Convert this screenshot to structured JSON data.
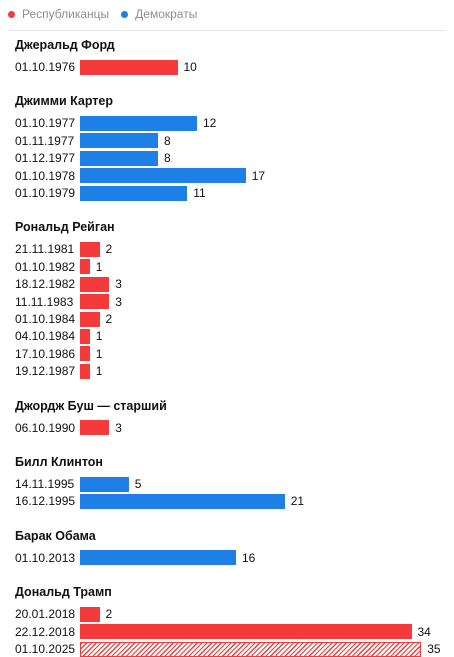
{
  "legend": [
    {
      "name": "Республиканцы",
      "color": "#f43a3a"
    },
    {
      "name": "Демократы",
      "color": "#1e7fe6"
    }
  ],
  "chart_data": {
    "type": "bar",
    "orientation": "horizontal",
    "xlim": [
      0,
      35
    ],
    "groups": [
      {
        "title": "Джеральд Форд",
        "bars": [
          {
            "label": "01.10.1976",
            "value": 10,
            "party": "rep"
          }
        ]
      },
      {
        "title": "Джимми Картер",
        "bars": [
          {
            "label": "01.10.1977",
            "value": 12,
            "party": "dem"
          },
          {
            "label": "01.11.1977",
            "value": 8,
            "party": "dem"
          },
          {
            "label": "01.12.1977",
            "value": 8,
            "party": "dem"
          },
          {
            "label": "01.10.1978",
            "value": 17,
            "party": "dem"
          },
          {
            "label": "01.10.1979",
            "value": 11,
            "party": "dem"
          }
        ]
      },
      {
        "title": "Рональд Рейган",
        "bars": [
          {
            "label": "21.11.1981",
            "value": 2,
            "party": "rep"
          },
          {
            "label": "01.10.1982",
            "value": 1,
            "party": "rep"
          },
          {
            "label": "18.12.1982",
            "value": 3,
            "party": "rep"
          },
          {
            "label": "11.11.1983",
            "value": 3,
            "party": "rep"
          },
          {
            "label": "01.10.1984",
            "value": 2,
            "party": "rep"
          },
          {
            "label": "04.10.1984",
            "value": 1,
            "party": "rep"
          },
          {
            "label": "17.10.1986",
            "value": 1,
            "party": "rep"
          },
          {
            "label": "19.12.1987",
            "value": 1,
            "party": "rep"
          }
        ]
      },
      {
        "title": "Джордж Буш — старший",
        "bars": [
          {
            "label": "06.10.1990",
            "value": 3,
            "party": "rep"
          }
        ]
      },
      {
        "title": "Билл Клинтон",
        "bars": [
          {
            "label": "14.11.1995",
            "value": 5,
            "party": "dem"
          },
          {
            "label": "16.12.1995",
            "value": 21,
            "party": "dem"
          }
        ]
      },
      {
        "title": "Барак Обама",
        "bars": [
          {
            "label": "01.10.2013",
            "value": 16,
            "party": "dem"
          }
        ]
      },
      {
        "title": "Дональд Трамп",
        "bars": [
          {
            "label": "20.01.2018",
            "value": 2,
            "party": "rep"
          },
          {
            "label": "22.12.2018",
            "value": 34,
            "party": "rep"
          },
          {
            "label": "01.10.2025",
            "value": 35,
            "party": "rep",
            "ongoing": true
          }
        ]
      }
    ]
  }
}
